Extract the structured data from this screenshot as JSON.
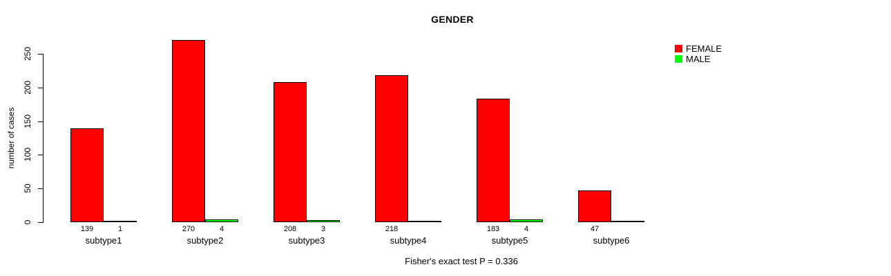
{
  "title": "GENDER",
  "ylabel": "number of cases",
  "footer": "Fisher's exact test P = 0.336",
  "legend": [
    {
      "label": "FEMALE",
      "color": "#ff0000"
    },
    {
      "label": "MALE",
      "color": "#00ff00"
    }
  ],
  "chart_data": {
    "type": "bar",
    "title": "GENDER",
    "xlabel": "",
    "ylabel": "number of cases",
    "categories": [
      "subtype1",
      "subtype2",
      "subtype3",
      "subtype4",
      "subtype5",
      "subtype6"
    ],
    "series": [
      {
        "name": "FEMALE",
        "color": "#ff0000",
        "values": [
          139,
          270,
          208,
          218,
          183,
          47
        ],
        "value_labels": [
          "139",
          "270",
          "208",
          "218",
          "183",
          "47"
        ]
      },
      {
        "name": "MALE",
        "color": "#00ff00",
        "values": [
          1,
          4,
          3,
          0,
          4,
          0
        ],
        "value_labels": [
          "1",
          "4",
          "3",
          null,
          "4",
          null
        ]
      }
    ],
    "yticks": [
      0,
      50,
      100,
      150,
      200,
      250
    ],
    "ylim": [
      0,
      250
    ],
    "grid": false,
    "legend_position": "right",
    "annotation": "Fisher's exact test P = 0.336"
  }
}
